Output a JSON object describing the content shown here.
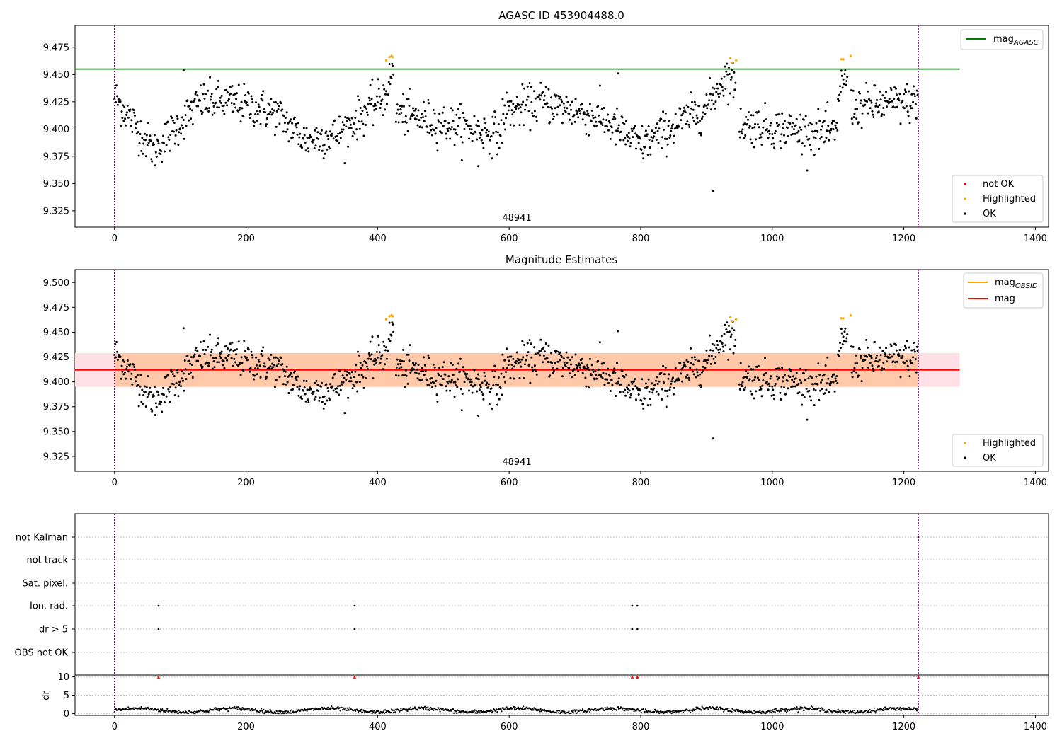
{
  "chart_data": [
    {
      "type": "scatter",
      "title": "AGASC ID 453904488.0",
      "annotation": "48941",
      "xlim": [
        -60,
        1420
      ],
      "ylim": [
        9.31,
        9.495
      ],
      "xticks": [
        "0",
        "200",
        "400",
        "600",
        "800",
        "1000",
        "1200",
        "1400"
      ],
      "yticks": [
        "9.325",
        "9.350",
        "9.375",
        "9.400",
        "9.425",
        "9.450",
        "9.475"
      ],
      "vlines_x": [
        0,
        1222
      ],
      "hline": {
        "label": "mag_AGASC",
        "label_main": "mag",
        "label_sub": "AGASC",
        "y": 9.455,
        "color": "#008000",
        "x_range": [
          -60,
          1285
        ]
      },
      "series": [
        {
          "name": "not OK",
          "color": "#ff0000",
          "points": []
        },
        {
          "name": "Highlighted",
          "color": "#ffa500",
          "points": [
            [
              413,
              9.463
            ],
            [
              418,
              9.466
            ],
            [
              421,
              9.467
            ],
            [
              423,
              9.466
            ],
            [
              936,
              9.465
            ],
            [
              939,
              9.461
            ],
            [
              945,
              9.463
            ],
            [
              1105,
              9.464
            ],
            [
              1108,
              9.464
            ],
            [
              1119,
              9.467
            ]
          ]
        },
        {
          "name": "OK",
          "color": "#000000",
          "segments": [
            {
              "x": [
                0,
                60
              ],
              "y": [
                9.43,
                9.38
              ]
            },
            {
              "x": [
                60,
                130
              ],
              "y": [
                9.38,
                9.425
              ]
            },
            {
              "x": [
                130,
                175
              ],
              "y": [
                9.425,
                9.425
              ]
            },
            {
              "x": [
                175,
                245
              ],
              "y": [
                9.425,
                9.415
              ]
            },
            {
              "x": [
                245,
                290
              ],
              "y": [
                9.415,
                9.39
              ]
            },
            {
              "x": [
                290,
                340
              ],
              "y": [
                9.39,
                9.395
              ]
            },
            {
              "x": [
                340,
                410
              ],
              "y": [
                9.395,
                9.43
              ]
            },
            {
              "x": [
                410,
                425
              ],
              "y": [
                9.43,
                9.455
              ]
            },
            {
              "x": [
                428,
                500
              ],
              "y": [
                9.415,
                9.405
              ]
            },
            {
              "x": [
                500,
                590
              ],
              "y": [
                9.405,
                9.395
              ]
            },
            {
              "x": [
                590,
                650
              ],
              "y": [
                9.415,
                9.425
              ]
            },
            {
              "x": [
                650,
                740
              ],
              "y": [
                9.425,
                9.41
              ]
            },
            {
              "x": [
                740,
                800
              ],
              "y": [
                9.41,
                9.385
              ]
            },
            {
              "x": [
                800,
                900
              ],
              "y": [
                9.385,
                9.42
              ]
            },
            {
              "x": [
                900,
                930
              ],
              "y": [
                9.42,
                9.45
              ]
            },
            {
              "x": [
                930,
                945
              ],
              "y": [
                9.45,
                9.44
              ]
            },
            {
              "x": [
                950,
                1100
              ],
              "y": [
                9.405,
                9.395
              ]
            },
            {
              "x": [
                1100,
                1115
              ],
              "y": [
                9.435,
                9.45
              ]
            },
            {
              "x": [
                1120,
                1222
              ],
              "y": [
                9.42,
                9.425
              ]
            }
          ],
          "outliers": [
            [
              910,
              9.343
            ],
            [
              553,
              9.366
            ],
            [
              105,
              9.454
            ],
            [
              765,
              9.451
            ]
          ]
        }
      ],
      "legend": [
        "mag_AGASC",
        "not OK",
        "Highlighted",
        "OK"
      ]
    },
    {
      "type": "scatter",
      "title": "Magnitude Estimates",
      "annotation": "48941",
      "xlim": [
        -60,
        1420
      ],
      "ylim": [
        9.31,
        9.513
      ],
      "xticks": [
        "0",
        "200",
        "400",
        "600",
        "800",
        "1000",
        "1200",
        "1400"
      ],
      "yticks": [
        "9.325",
        "9.350",
        "9.375",
        "9.400",
        "9.425",
        "9.450",
        "9.475",
        "9.500"
      ],
      "vlines_x": [
        0,
        1222
      ],
      "hline": {
        "label": "mag",
        "y": 9.412,
        "color": "#ff0000",
        "x_range": [
          -60,
          1285
        ]
      },
      "band": {
        "y": [
          9.395,
          9.429
        ],
        "color_inner": "#ffc8a8",
        "color_outer": "#ffe0e6",
        "inner_x_range": [
          0,
          1222
        ]
      },
      "legend_lines": [
        {
          "label": "mag_OBSID",
          "label_main": "mag",
          "label_sub": "OBSID",
          "color": "#ffa500"
        },
        {
          "label": "mag",
          "color": "#ff0000"
        }
      ],
      "series": [
        {
          "name": "Highlighted",
          "color": "#ffa500",
          "same_as_panel": 0
        },
        {
          "name": "OK",
          "color": "#000000",
          "same_as_panel": 0
        }
      ],
      "legend": [
        "mag_OBSID",
        "mag",
        "Highlighted",
        "OK"
      ]
    },
    {
      "type": "scatter",
      "title": "",
      "xlim": [
        -60,
        1420
      ],
      "categories": [
        "not Kalman",
        "not track",
        "Sat. pixel.",
        "Ion. rad.",
        "dr > 5",
        "OBS not OK"
      ],
      "flags": {
        "not Kalman": [
          1222
        ],
        "not track": [],
        "Sat. pixel.": [],
        "Ion. rad.": [
          67,
          365,
          787,
          795
        ],
        "dr > 5": [
          67,
          365,
          787,
          795
        ],
        "OBS not OK": []
      },
      "vlines_x": [
        0,
        1222
      ]
    },
    {
      "type": "scatter",
      "title": "",
      "ylabel": "dr",
      "xlim": [
        -60,
        1420
      ],
      "ylim": [
        -0.5,
        10.5
      ],
      "xticks": [
        "0",
        "200",
        "400",
        "600",
        "800",
        "1000",
        "1200",
        "1400"
      ],
      "yticks": [
        "0",
        "5",
        "10"
      ],
      "clipped_markers_x": [
        67,
        365,
        787,
        795,
        1222
      ],
      "typical_dr": [
        0.2,
        1.6
      ],
      "vlines_x": [
        0,
        1222
      ]
    }
  ]
}
